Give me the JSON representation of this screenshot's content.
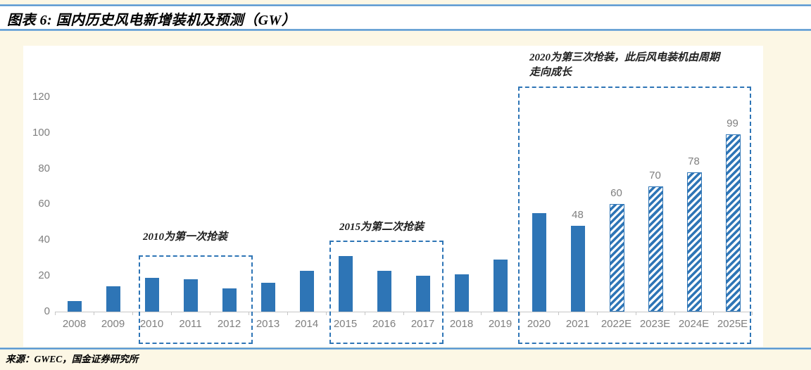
{
  "page": {
    "title": "图表 6: 国内历史风电新增装机及预测（GW）",
    "source": "来源：GWEC，国金证券研究所"
  },
  "colors": {
    "bar_blue": "#2E75B6",
    "dashed_blue": "#2E75B6",
    "separator_blue": "#3D85C6",
    "page_background": "#FCF7E5",
    "plot_background": "#FFFFFF",
    "axis_text_gray": "#7F7F7F",
    "axis_line_gray": "#C6C6C6",
    "annotation_text": "#1F1F1F"
  },
  "chart_data": {
    "type": "bar",
    "title": "国内历史风电新增装机及预测（GW）",
    "units": "GW",
    "categories": [
      "2008",
      "2009",
      "2010",
      "2011",
      "2012",
      "2013",
      "2014",
      "2015",
      "2016",
      "2017",
      "2018",
      "2019",
      "2020",
      "2021",
      "2022E",
      "2023E",
      "2024E",
      "2025E"
    ],
    "values": [
      6,
      14,
      19,
      18,
      13,
      16,
      23,
      31,
      23,
      20,
      21,
      29,
      55,
      48,
      60,
      70,
      78,
      99
    ],
    "hatched_forecast_categories": [
      "2022E",
      "2023E",
      "2024E",
      "2025E"
    ],
    "value_labels": {
      "2021": "48",
      "2022E": "60",
      "2023E": "70",
      "2024E": "78",
      "2025E": "99"
    },
    "ylim": [
      0,
      120
    ],
    "yticks": [
      0,
      20,
      40,
      60,
      80,
      100,
      120
    ],
    "grid": false,
    "legend_position": "none",
    "annotations": [
      {
        "lines": [
          "2010为第一次抢装"
        ],
        "box_from": "2010",
        "box_to": "2012"
      },
      {
        "lines": [
          "2015为第二次抢装"
        ],
        "box_from": "2015",
        "box_to": "2017"
      },
      {
        "lines": [
          "2020为第三次抢装，此后风电装机由周期",
          "走向成长"
        ],
        "box_from": "2020",
        "box_to": "2025E"
      }
    ]
  }
}
